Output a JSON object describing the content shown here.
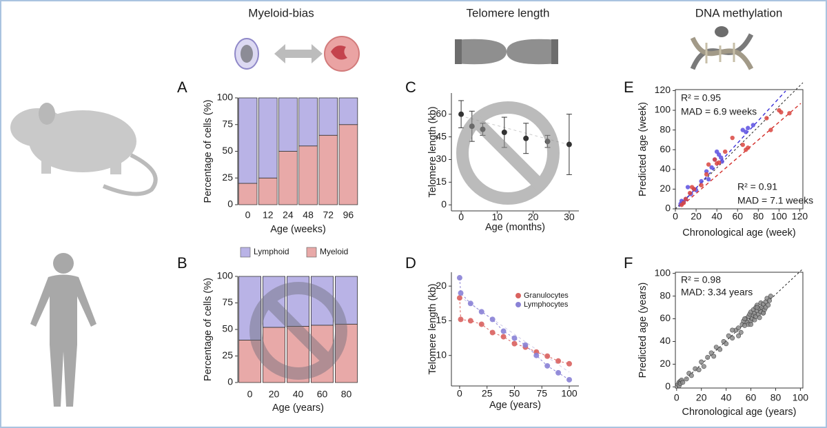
{
  "headers": [
    "Myeloid-bias",
    "Telomere length",
    "DNA methylation"
  ],
  "chart_data": [
    {
      "panel": "A",
      "type": "bar",
      "stacked": true,
      "categories": [
        "0",
        "12",
        "24",
        "48",
        "72",
        "96"
      ],
      "series": [
        {
          "color": "#e8a9a8",
          "values": [
            20,
            25,
            50,
            55,
            65,
            75
          ]
        },
        {
          "color": "#b9b3e6",
          "values": [
            80,
            75,
            50,
            45,
            35,
            25
          ]
        }
      ],
      "xlabel": "Age (weeks)",
      "ylabel": "Percentage of cells (%)",
      "ylim": [
        0,
        100
      ],
      "yticks": [
        0,
        25,
        50,
        75,
        100
      ]
    },
    {
      "panel": "B",
      "type": "bar",
      "stacked": true,
      "categories": [
        "0",
        "20",
        "40",
        "60",
        "80"
      ],
      "series": [
        {
          "name": "Myeloid",
          "color": "#e8a9a8",
          "values": [
            40,
            52,
            53,
            54,
            55
          ]
        },
        {
          "name": "Lymphoid",
          "color": "#b9b3e6",
          "values": [
            60,
            48,
            47,
            46,
            45
          ]
        }
      ],
      "xlabel": "Age (years)",
      "ylabel": "Percentage of cells (%)",
      "ylim": [
        0,
        100
      ],
      "yticks": [
        0,
        25,
        50,
        75,
        100
      ]
    },
    {
      "panel": "C",
      "type": "errorbar",
      "color": "#333333",
      "x": [
        0,
        3,
        6,
        12,
        18,
        24,
        30
      ],
      "values": [
        60,
        52,
        50,
        48,
        44,
        42,
        40
      ],
      "errors": [
        9,
        10,
        4,
        10,
        10,
        4,
        20
      ],
      "xlabel": "Age (months)",
      "ylabel": "Telomere length (kb)",
      "xlim": [
        -2.7,
        32.7
      ],
      "xticks": [
        0,
        10,
        20,
        30
      ],
      "ylim": [
        -4,
        74
      ],
      "yticks": [
        0,
        15,
        30,
        45,
        60
      ]
    },
    {
      "panel": "D",
      "type": "line",
      "x": [
        0,
        1,
        10,
        20,
        30,
        40,
        50,
        60,
        70,
        80,
        90,
        100
      ],
      "series": [
        {
          "name": "Granulocytes",
          "color": "#d9625f",
          "values": [
            18.3,
            15.2,
            15,
            14.5,
            13.3,
            12.7,
            11.7,
            11.2,
            10.5,
            9.9,
            9.2,
            8.8
          ]
        },
        {
          "name": "Lymphocytes",
          "color": "#8a82d6",
          "values": [
            21.2,
            19,
            17.5,
            16.3,
            15.2,
            13.5,
            12.5,
            11.5,
            10,
            8.5,
            7.5,
            6.5
          ]
        }
      ],
      "legend": "upper right",
      "xlabel": "Age (years)",
      "ylabel": "Telomere length (kb)",
      "xlim": [
        -7.5,
        108.8
      ],
      "xticks": [
        0,
        25,
        50,
        75,
        100
      ],
      "ylim": [
        5.6,
        22
      ],
      "yticks": [
        10,
        15,
        20
      ]
    },
    {
      "panel": "E",
      "type": "scatter",
      "frame": true,
      "series": [
        {
          "color": "#5b4fe0",
          "x": [
            5,
            6,
            8,
            10,
            12,
            15,
            18,
            20,
            25,
            30,
            32,
            35,
            38,
            40,
            42,
            44,
            45,
            65,
            68,
            70,
            75
          ],
          "values": [
            5,
            8,
            7,
            10,
            22,
            15,
            20,
            19,
            28,
            38,
            30,
            42,
            50,
            58,
            55,
            52,
            48,
            80,
            78,
            82,
            85
          ]
        },
        {
          "color": "#d9453f",
          "x": [
            6,
            8,
            10,
            14,
            16,
            18,
            25,
            30,
            32,
            38,
            40,
            42,
            48,
            55,
            65,
            68,
            70,
            88,
            92,
            100,
            102,
            110
          ],
          "values": [
            4,
            6,
            10,
            16,
            22,
            20,
            24,
            35,
            45,
            50,
            46,
            47,
            58,
            72,
            65,
            60,
            62,
            92,
            80,
            100,
            98,
            97
          ]
        }
      ],
      "annotations": [
        {
          "text": "R² = 0.95",
          "color": "#3b30d6"
        },
        {
          "text": "MAD = 6.9 weeks",
          "color": "#3b30d6"
        },
        {
          "text": "R² = 0.91",
          "color": "#d32f2a"
        },
        {
          "text": "MAD = 7.1 weeks",
          "color": "#d32f2a"
        }
      ],
      "xlabel": "Chronological age (week)",
      "ylabel": "Predicted age (week)",
      "xlim": [
        0,
        123
      ],
      "xticks": [
        0,
        20,
        40,
        60,
        80,
        100,
        120
      ],
      "ylim": [
        0,
        121
      ],
      "yticks": [
        0,
        20,
        40,
        60,
        80,
        100,
        120
      ]
    },
    {
      "panel": "F",
      "type": "scatter",
      "frame": true,
      "series": [
        {
          "color": "#8c8c8c",
          "x": [
            1,
            2,
            2,
            3,
            3,
            4,
            5,
            8,
            10,
            12,
            15,
            18,
            20,
            22,
            25,
            28,
            30,
            32,
            35,
            38,
            40,
            42,
            45,
            48,
            50,
            52,
            53,
            54,
            55,
            56,
            57,
            58,
            58,
            59,
            60,
            60,
            61,
            62,
            62,
            63,
            63,
            64,
            64,
            65,
            65,
            66,
            67,
            67,
            68,
            68,
            69,
            70,
            70,
            71,
            72,
            72,
            73,
            74,
            75,
            76,
            55,
            60,
            65,
            70,
            50,
            45
          ],
          "values": [
            2,
            4,
            1,
            5,
            3,
            6,
            4,
            7,
            12,
            10,
            16,
            15,
            22,
            18,
            26,
            30,
            27,
            35,
            33,
            40,
            38,
            45,
            43,
            50,
            52,
            48,
            55,
            58,
            54,
            60,
            57,
            62,
            55,
            64,
            58,
            66,
            60,
            63,
            68,
            59,
            65,
            70,
            62,
            67,
            72,
            64,
            69,
            61,
            74,
            66,
            70,
            73,
            65,
            68,
            75,
            70,
            78,
            72,
            76,
            80,
            60,
            55,
            70,
            65,
            45,
            50
          ]
        }
      ],
      "annotations": [
        {
          "text": "R² = 0.98",
          "color": "#111111"
        },
        {
          "text": "MAD: 3.34 years",
          "color": "#111111"
        }
      ],
      "xlabel": "Chronological age (years)",
      "ylabel": "Predicted age (years)",
      "xlim": [
        -1,
        102
      ],
      "xticks": [
        0,
        20,
        40,
        60,
        80,
        100
      ],
      "ylim": [
        -1,
        101
      ],
      "yticks": [
        0,
        20,
        40,
        60,
        80,
        100
      ]
    }
  ]
}
